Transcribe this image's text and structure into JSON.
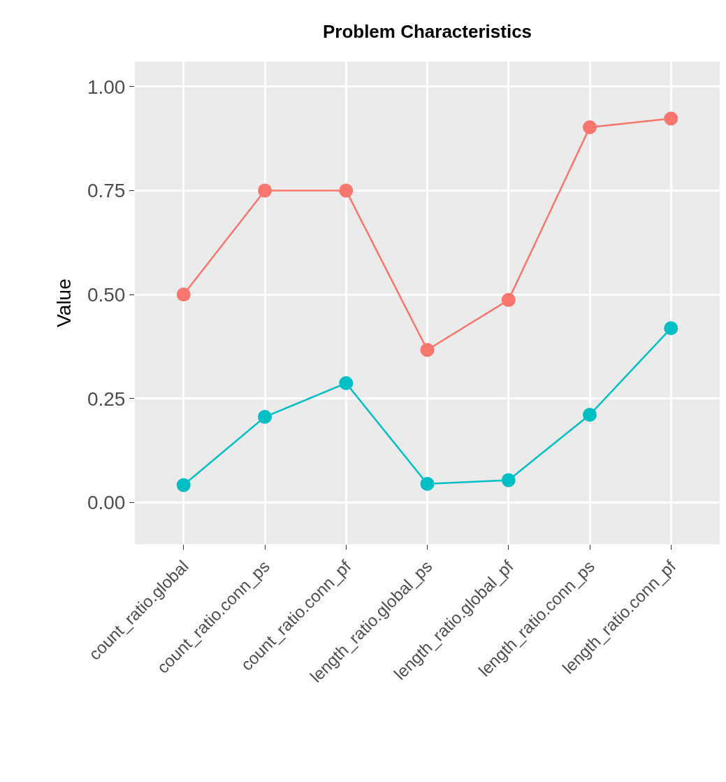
{
  "chart_data": {
    "type": "line",
    "title": "Problem Characteristics",
    "ylabel": "Value",
    "categories": [
      "count_ratio.global",
      "count_ratio.conn_ps",
      "count_ratio.conn_pf",
      "length_ratio.global_ps",
      "length_ratio.global_pf",
      "length_ratio.conn_ps",
      "length_ratio.conn_pf"
    ],
    "series": [
      {
        "color": "#f8766d",
        "values": [
          0.5,
          0.75,
          0.75,
          0.367,
          0.487,
          0.902,
          0.923
        ]
      },
      {
        "color": "#00bfc4",
        "values": [
          0.042,
          0.206,
          0.287,
          0.045,
          0.054,
          0.211,
          0.419
        ]
      }
    ],
    "ylim": [
      -0.1,
      1.06
    ],
    "yticks": [
      {
        "value": 0,
        "label": "0.00"
      },
      {
        "value": 0.25,
        "label": "0.25"
      },
      {
        "value": 0.5,
        "label": "0.50"
      },
      {
        "value": 0.75,
        "label": "0.75"
      },
      {
        "value": 1,
        "label": "1.00"
      }
    ],
    "grid": true,
    "marker": "circle",
    "line_style": "solid"
  }
}
